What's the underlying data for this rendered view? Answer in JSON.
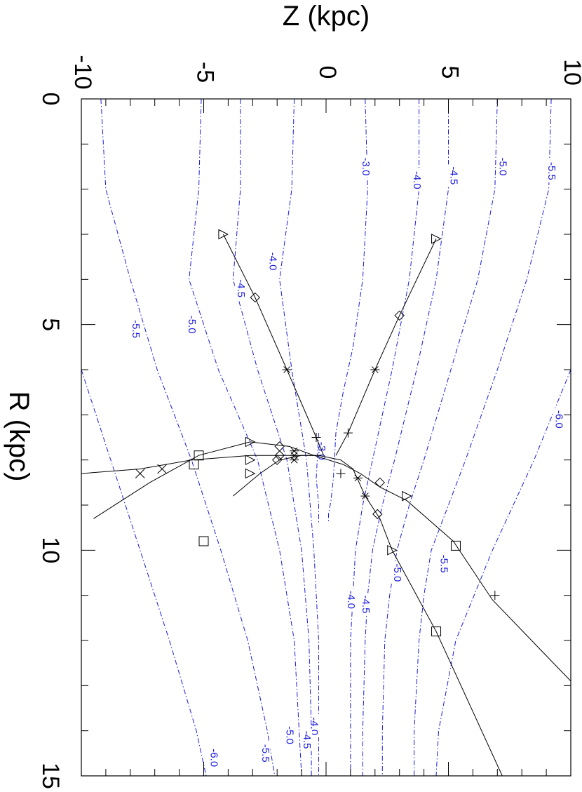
{
  "chart_data": {
    "type": "line",
    "orientation": "rotated-90-clockwise",
    "xlabel": "R (kpc)",
    "ylabel": "Z (kpc)",
    "xlim": [
      0,
      15
    ],
    "ylim": [
      -10,
      10
    ],
    "xticks": [
      0,
      5,
      10,
      15
    ],
    "xtick_labels": [
      "0",
      "5",
      "10",
      "15"
    ],
    "yticks": [
      -10,
      -5,
      0,
      5,
      10
    ],
    "ytick_labels": [
      "-10",
      "-5",
      "0",
      "5",
      "10"
    ],
    "grid": false,
    "contour_color": "#1a1ae0",
    "contours": [
      {
        "label": "-3.0",
        "points": [
          [
            0,
            1.6
          ],
          [
            2,
            1.7
          ],
          [
            4,
            1.5
          ],
          [
            5.5,
            1.1
          ],
          [
            6.5,
            0.7
          ],
          [
            7.4,
            0.4
          ],
          [
            8.4,
            0.3
          ],
          [
            8.9,
            0.2
          ],
          [
            9.2,
            0.1
          ],
          [
            9.4,
            0.1
          ]
        ],
        "labels_at": [
          [
            1.5,
            1.6
          ],
          [
            7.8,
            -0.2
          ]
        ]
      },
      {
        "label": "-3.0",
        "points": [
          [
            7.4,
            -0.3
          ],
          [
            8.4,
            -0.4
          ],
          [
            9.0,
            -0.3
          ],
          [
            9.4,
            -0.3
          ]
        ],
        "labels_at": []
      },
      {
        "label": "-4.0",
        "points": [
          [
            0,
            3.8
          ],
          [
            2,
            3.8
          ],
          [
            4,
            3.4
          ],
          [
            6,
            2.7
          ],
          [
            8,
            1.9
          ],
          [
            9,
            1.5
          ],
          [
            10,
            1.2
          ],
          [
            11,
            1.1
          ],
          [
            12,
            1.0
          ],
          [
            14,
            1.0
          ],
          [
            15,
            1.0
          ]
        ],
        "labels_at": [
          [
            1.8,
            3.7
          ],
          [
            11.1,
            1.0
          ]
        ]
      },
      {
        "label": "-4.5",
        "points": [
          [
            0,
            5.0
          ],
          [
            2,
            5.0
          ],
          [
            4,
            4.5
          ],
          [
            6,
            3.7
          ],
          [
            8,
            2.8
          ],
          [
            9,
            2.3
          ],
          [
            10,
            1.9
          ],
          [
            11,
            1.7
          ],
          [
            12,
            1.6
          ],
          [
            14,
            1.5
          ],
          [
            15,
            1.5
          ]
        ],
        "labels_at": [
          [
            1.7,
            5.2
          ],
          [
            11.2,
            1.6
          ]
        ]
      },
      {
        "label": "-5.0",
        "points": [
          [
            0,
            7.0
          ],
          [
            2,
            6.9
          ],
          [
            4,
            6.2
          ],
          [
            6,
            5.1
          ],
          [
            8,
            4.0
          ],
          [
            9,
            3.4
          ],
          [
            10,
            2.9
          ],
          [
            11,
            2.6
          ],
          [
            12,
            2.4
          ],
          [
            14,
            2.3
          ],
          [
            15,
            2.3
          ]
        ],
        "labels_at": [
          [
            1.5,
            7.2
          ],
          [
            10.5,
            2.9
          ]
        ]
      },
      {
        "label": "-5.5",
        "points": [
          [
            0,
            9.2
          ],
          [
            2,
            9.1
          ],
          [
            4,
            8.2
          ],
          [
            6,
            7.0
          ],
          [
            8,
            5.7
          ],
          [
            9,
            5.0
          ],
          [
            10,
            4.3
          ],
          [
            11,
            4.0
          ],
          [
            12,
            3.8
          ],
          [
            14,
            3.6
          ],
          [
            15,
            3.6
          ]
        ],
        "labels_at": [
          [
            1.6,
            9.2
          ],
          [
            10.3,
            4.8
          ]
        ]
      },
      {
        "label": "-6.0",
        "points": [
          [
            6,
            10.0
          ],
          [
            8,
            8.5
          ],
          [
            10,
            6.8
          ],
          [
            12,
            5.3
          ],
          [
            14,
            4.6
          ],
          [
            15,
            4.5
          ]
        ],
        "labels_at": [
          [
            7.1,
            9.5
          ]
        ]
      },
      {
        "label": "-4.0",
        "points": [
          [
            0,
            -1.3
          ],
          [
            2,
            -1.4
          ],
          [
            4,
            -1.9
          ],
          [
            6,
            -1.4
          ],
          [
            8,
            -0.8
          ],
          [
            10,
            -0.5
          ],
          [
            12,
            -0.3
          ],
          [
            14,
            -0.3
          ],
          [
            15,
            -0.3
          ]
        ],
        "labels_at": [
          [
            3.6,
            -2.2
          ],
          [
            13.9,
            -0.5
          ]
        ]
      },
      {
        "label": "-4.5",
        "points": [
          [
            0,
            -3.5
          ],
          [
            2,
            -3.5
          ],
          [
            4,
            -3.8
          ],
          [
            6,
            -2.8
          ],
          [
            8,
            -1.6
          ],
          [
            10,
            -1.0
          ],
          [
            12,
            -0.7
          ],
          [
            14,
            -0.6
          ],
          [
            15,
            -0.6
          ]
        ],
        "labels_at": [
          [
            4.2,
            -3.5
          ],
          [
            14.2,
            -0.8
          ]
        ]
      },
      {
        "label": "-5.0",
        "points": [
          [
            0,
            -5.1
          ],
          [
            2,
            -5.2
          ],
          [
            4,
            -5.6
          ],
          [
            6,
            -4.4
          ],
          [
            8,
            -2.8
          ],
          [
            10,
            -1.9
          ],
          [
            12,
            -1.3
          ],
          [
            14,
            -1.1
          ],
          [
            15,
            -1.0
          ]
        ],
        "labels_at": [
          [
            5.0,
            -5.5
          ],
          [
            14.1,
            -1.5
          ]
        ]
      },
      {
        "label": "-5.5",
        "points": [
          [
            0,
            -9.2
          ],
          [
            2,
            -9.0
          ],
          [
            4,
            -8.0
          ],
          [
            6,
            -6.9
          ],
          [
            8,
            -5.5
          ],
          [
            10,
            -4.3
          ],
          [
            12,
            -3.2
          ],
          [
            14,
            -2.4
          ],
          [
            15,
            -2.1
          ]
        ],
        "labels_at": [
          [
            5.1,
            -7.8
          ],
          [
            14.5,
            -2.5
          ]
        ]
      },
      {
        "label": "-6.0",
        "points": [
          [
            6,
            -10.0
          ],
          [
            8,
            -8.8
          ],
          [
            10,
            -7.6
          ],
          [
            12,
            -6.4
          ],
          [
            14,
            -5.3
          ],
          [
            15,
            -4.9
          ]
        ],
        "labels_at": [
          [
            14.6,
            -4.6
          ]
        ]
      }
    ],
    "series": [
      {
        "points": [
          [
            3.0,
            -4.2
          ],
          [
            4.4,
            -2.9
          ],
          [
            6.0,
            -1.6
          ],
          [
            7.5,
            -0.4
          ],
          [
            7.9,
            -0.1
          ]
        ],
        "markers": [
          {
            "at": [
              3.0,
              -4.2
            ],
            "symbol": "triangle-right"
          },
          {
            "at": [
              4.4,
              -2.9
            ],
            "symbol": "diamond"
          },
          {
            "at": [
              6.0,
              -1.6
            ],
            "symbol": "asterisk"
          },
          {
            "at": [
              7.5,
              -0.4
            ],
            "symbol": "plus"
          }
        ]
      },
      {
        "points": [
          [
            3.1,
            4.5
          ],
          [
            4.8,
            3.0
          ],
          [
            6.0,
            2.0
          ],
          [
            7.4,
            0.9
          ],
          [
            7.9,
            0.4
          ]
        ],
        "markers": [
          {
            "at": [
              3.1,
              4.5
            ],
            "symbol": "triangle-right"
          },
          {
            "at": [
              4.8,
              3.0
            ],
            "symbol": "diamond"
          },
          {
            "at": [
              6.0,
              2.0
            ],
            "symbol": "asterisk"
          },
          {
            "at": [
              7.4,
              0.9
            ],
            "symbol": "plus"
          }
        ]
      },
      {
        "points": [
          [
            9.3,
            -9.5
          ],
          [
            8.5,
            -7.2
          ],
          [
            7.9,
            -5.2
          ],
          [
            7.6,
            -3.1
          ],
          [
            7.7,
            -1.5
          ],
          [
            7.9,
            -0.5
          ],
          [
            8.1,
            0.7
          ],
          [
            8.3,
            1.4
          ],
          [
            8.6,
            2.2
          ],
          [
            8.9,
            3.3
          ],
          [
            9.8,
            5.2
          ],
          [
            11.1,
            6.8
          ],
          [
            12.9,
            10.0
          ]
        ],
        "markers": [
          {
            "at": [
              7.9,
              -5.2
            ],
            "symbol": "square"
          },
          {
            "at": [
              7.6,
              -3.1
            ],
            "symbol": "triangle-right"
          },
          {
            "at": [
              7.7,
              -1.9
            ],
            "symbol": "diamond"
          },
          {
            "at": [
              7.8,
              -1.3
            ],
            "symbol": "asterisk"
          },
          {
            "at": [
              8.4,
              1.3
            ],
            "symbol": "asterisk"
          },
          {
            "at": [
              8.5,
              2.2
            ],
            "symbol": "diamond"
          },
          {
            "at": [
              8.8,
              3.3
            ],
            "symbol": "triangle-right"
          },
          {
            "at": [
              9.9,
              5.3
            ],
            "symbol": "square"
          },
          {
            "at": [
              11.0,
              6.9
            ],
            "symbol": "plus"
          }
        ]
      },
      {
        "points": [
          [
            8.8,
            -3.8
          ],
          [
            8.3,
            -2.7
          ],
          [
            8.0,
            -1.9
          ],
          [
            7.9,
            -1.0
          ],
          [
            7.9,
            -0.3
          ],
          [
            8.0,
            0.6
          ],
          [
            8.2,
            1.1
          ],
          [
            8.8,
            1.6
          ],
          [
            9.3,
            2.2
          ],
          [
            10.0,
            2.7
          ],
          [
            11.8,
            4.5
          ],
          [
            15,
            7.2
          ]
        ],
        "markers": [
          {
            "at": [
              8.3,
              -3.1
            ],
            "symbol": "triangle-right"
          },
          {
            "at": [
              8.0,
              -2.0
            ],
            "symbol": "diamond"
          },
          {
            "at": [
              8.0,
              -1.3
            ],
            "symbol": "asterisk"
          },
          {
            "at": [
              8.3,
              0.6
            ],
            "symbol": "plus"
          },
          {
            "at": [
              8.8,
              1.6
            ],
            "symbol": "asterisk"
          },
          {
            "at": [
              9.2,
              2.1
            ],
            "symbol": "diamond"
          },
          {
            "at": [
              10.0,
              2.7
            ],
            "symbol": "triangle-right"
          },
          {
            "at": [
              11.8,
              4.5
            ],
            "symbol": "square"
          }
        ]
      },
      {
        "points": [
          [
            8.3,
            -10.0
          ],
          [
            8.2,
            -7.6
          ],
          [
            8.0,
            -5.5
          ],
          [
            7.9,
            -3.1
          ],
          [
            7.9,
            -1.5
          ],
          [
            7.9,
            -0.2
          ]
        ],
        "markers": [
          {
            "at": [
              8.3,
              -7.6
            ],
            "symbol": "cross"
          },
          {
            "at": [
              8.2,
              -6.7
            ],
            "symbol": "cross"
          },
          {
            "at": [
              8.1,
              -5.4
            ],
            "symbol": "square"
          },
          {
            "at": [
              8.0,
              -3.1
            ],
            "symbol": "triangle-right"
          },
          {
            "at": [
              7.9,
              -1.9
            ],
            "symbol": "diamond"
          },
          {
            "at": [
              7.9,
              -1.3
            ],
            "symbol": "asterisk"
          }
        ]
      },
      {
        "points": [
          [
            9.8,
            -5.0
          ]
        ],
        "markers": [
          {
            "at": [
              9.8,
              -5.0
            ],
            "symbol": "square"
          }
        ]
      }
    ]
  }
}
